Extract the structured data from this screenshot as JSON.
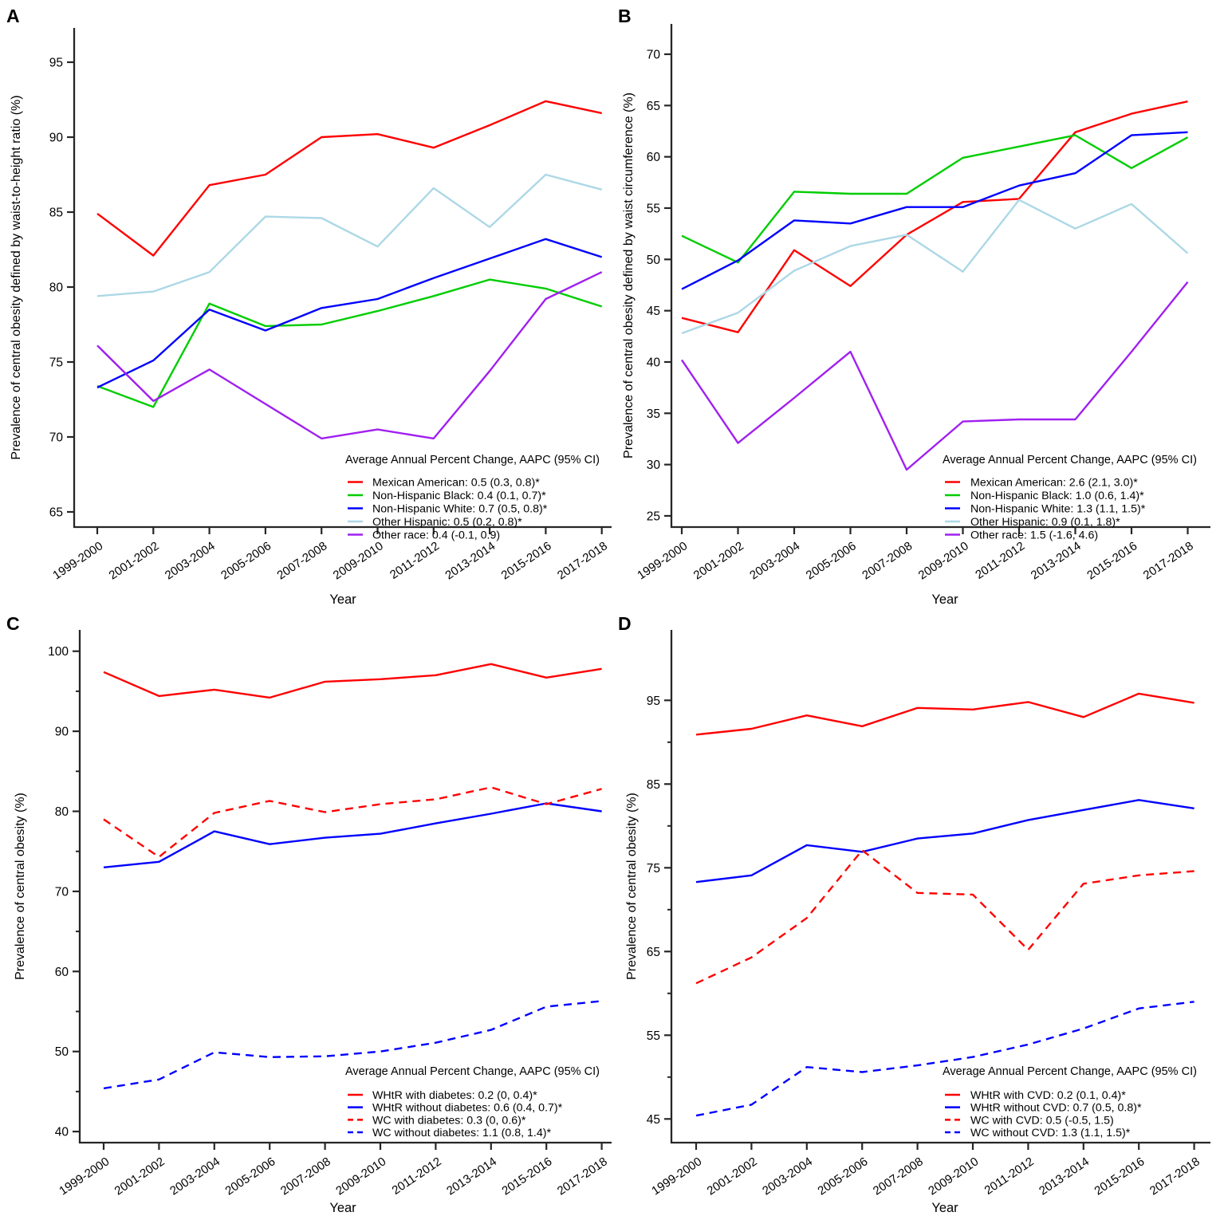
{
  "figure_title": "",
  "categories": [
    "1999-2000",
    "2001-2002",
    "2003-2004",
    "2005-2006",
    "2007-2008",
    "2009-2010",
    "2011-2012",
    "2013-2014",
    "2015-2016",
    "2017-2018"
  ],
  "xlabel": "Year",
  "legend_title": "Average Annual Percent Change, AAPC (95% CI)",
  "colors": {
    "red": "#FF0000",
    "green": "#00CD00",
    "blue": "#0000FF",
    "lightblue": "#ADD8E6",
    "purple": "#A020F0",
    "axis": "#262626"
  },
  "chart_data": [
    {
      "panel": "A",
      "type": "line",
      "ylabel": "Prevalence of central obesity defined by waist-to-height ratio (%)",
      "xlabel": "Year",
      "ylim": [
        63,
        97.5
      ],
      "yticks": [
        95,
        90,
        85,
        80,
        75,
        70,
        65
      ],
      "yticks_minor": [],
      "grid": false,
      "legend_position": "lower right",
      "legend_title": "Average Annual Percent Change, AAPC (95% CI)",
      "series": [
        {
          "name": "Mexican American",
          "legend": "Mexican American: 0.5 (0.3, 0.8)*",
          "color": "#FF0000",
          "dashed": false,
          "values": [
            84.9,
            82.1,
            86.8,
            87.5,
            90.0,
            90.2,
            89.3,
            90.8,
            92.4,
            91.6
          ]
        },
        {
          "name": "Non-Hispanic Black",
          "legend": "Non-Hispanic Black: 0.4 (0.1, 0.7)*",
          "color": "#00CD00",
          "dashed": false,
          "values": [
            73.4,
            72.0,
            78.9,
            77.4,
            77.5,
            78.4,
            79.4,
            80.5,
            79.9,
            78.7
          ]
        },
        {
          "name": "Non-Hispanic White",
          "legend": "Non-Hispanic White: 0.7 (0.5, 0.8)*",
          "color": "#0000FF",
          "dashed": false,
          "values": [
            73.3,
            75.1,
            78.5,
            77.1,
            78.6,
            79.2,
            80.6,
            81.9,
            83.2,
            82.0
          ]
        },
        {
          "name": "Other Hispanic",
          "legend": "Other Hispanic: 0.5 (0.2, 0.8)*",
          "color": "#ADD8E6",
          "dashed": false,
          "values": [
            79.4,
            79.7,
            81.0,
            84.7,
            84.6,
            82.7,
            86.6,
            84.0,
            87.5,
            86.5
          ]
        },
        {
          "name": "Other race",
          "legend": "Other race: 0.4 (-0.1, 0.9)",
          "color": "#A020F0",
          "dashed": false,
          "values": [
            76.1,
            72.4,
            74.5,
            72.2,
            69.9,
            70.5,
            69.9,
            74.4,
            79.2,
            81.0
          ]
        }
      ]
    },
    {
      "panel": "B",
      "type": "line",
      "ylabel": "Prevalence of central obesity defined by waist circumference (%)",
      "xlabel": "Year",
      "ylim": [
        23,
        71
      ],
      "yticks": [
        70,
        65,
        60,
        55,
        50,
        45,
        40,
        35,
        30,
        25
      ],
      "yticks_minor": [],
      "grid": false,
      "legend_position": "lower right",
      "legend_title": "Average Annual Percent Change, AAPC (95% CI)",
      "series": [
        {
          "name": "Mexican American",
          "legend": "Mexican American: 2.6 (2.1, 3.0)*",
          "color": "#FF0000",
          "dashed": false,
          "values": [
            44.3,
            42.9,
            50.9,
            47.4,
            52.4,
            55.6,
            55.9,
            62.4,
            64.2,
            65.4
          ]
        },
        {
          "name": "Non-Hispanic Black",
          "legend": "Non-Hispanic Black: 1.0 (0.6, 1.4)*",
          "color": "#00CD00",
          "dashed": false,
          "values": [
            52.3,
            49.7,
            56.6,
            56.4,
            56.4,
            59.9,
            61.0,
            62.1,
            58.9,
            61.9
          ]
        },
        {
          "name": "Non-Hispanic White",
          "legend": "Non-Hispanic White: 1.3 (1.1, 1.5)*",
          "color": "#0000FF",
          "dashed": false,
          "values": [
            47.1,
            49.9,
            53.8,
            53.5,
            55.1,
            55.1,
            57.2,
            58.4,
            62.1,
            62.4
          ]
        },
        {
          "name": "Other Hispanic",
          "legend": "Other Hispanic: 0.9 (0.1, 1.8)*",
          "color": "#ADD8E6",
          "dashed": false,
          "values": [
            42.8,
            44.8,
            48.9,
            51.3,
            52.4,
            48.8,
            55.8,
            53.0,
            55.4,
            50.6
          ]
        },
        {
          "name": "Other race",
          "legend": "Other race: 1.5 (-1.6, 4.6)",
          "color": "#A020F0",
          "dashed": false,
          "values": [
            40.2,
            32.1,
            36.5,
            41.0,
            29.5,
            34.2,
            34.4,
            34.4,
            41.0,
            47.8
          ]
        }
      ]
    },
    {
      "panel": "C",
      "type": "line",
      "ylabel": "Prevalence of central obesity (%)",
      "xlabel": "Year",
      "ylim": [
        38,
        102
      ],
      "yticks": [
        100,
        90,
        80,
        70,
        60,
        50,
        40
      ],
      "yticks_minor": [
        95,
        85,
        75,
        65,
        55,
        45
      ],
      "grid": false,
      "legend_position": "lower right",
      "legend_title": "Average Annual Percent Change, AAPC (95% CI)",
      "series": [
        {
          "name": "WHtR with diabetes",
          "legend": "WHtR with diabetes: 0.2 (0, 0.4)*",
          "color": "#FF0000",
          "dashed": false,
          "values": [
            97.4,
            94.4,
            95.2,
            94.2,
            96.2,
            96.5,
            97.0,
            98.4,
            96.7,
            97.8
          ]
        },
        {
          "name": "WHtR without diabetes",
          "legend": "WHtR without diabetes: 0.6 (0.4, 0.7)*",
          "color": "#0000FF",
          "dashed": false,
          "values": [
            73.0,
            73.7,
            77.5,
            75.9,
            76.7,
            77.2,
            78.5,
            79.7,
            81.0,
            80.0
          ]
        },
        {
          "name": "WC with diabetes",
          "legend": "WC with diabetes: 0.3 (0, 0.6)*",
          "color": "#FF0000",
          "dashed": true,
          "values": [
            79.0,
            74.3,
            79.8,
            81.3,
            79.9,
            80.9,
            81.5,
            83.0,
            80.9,
            82.8
          ]
        },
        {
          "name": "WC without diabetes",
          "legend": "WC without diabetes: 1.1 (0.8, 1.4)*",
          "color": "#0000FF",
          "dashed": true,
          "values": [
            45.4,
            46.5,
            49.9,
            49.3,
            49.4,
            50.0,
            51.1,
            52.7,
            55.6,
            56.3
          ]
        }
      ]
    },
    {
      "panel": "D",
      "type": "line",
      "ylabel": "Prevalence of central obesity (%)",
      "xlabel": "Year",
      "ylim": [
        42,
        97
      ],
      "yticks": [
        95,
        85,
        75,
        65,
        55,
        45
      ],
      "yticks_minor": [
        90,
        80,
        70,
        60,
        50
      ],
      "grid": false,
      "legend_position": "lower right",
      "legend_title": "Average Annual Percent Change, AAPC (95% CI)",
      "series": [
        {
          "name": "WHtR with CVD",
          "legend": "WHtR with CVD: 0.2 (0.1, 0.4)*",
          "color": "#FF0000",
          "dashed": false,
          "values": [
            90.9,
            91.6,
            93.2,
            91.9,
            94.1,
            93.9,
            94.8,
            93.0,
            95.8,
            94.7
          ]
        },
        {
          "name": "WHtR without CVD",
          "legend": "WHtR without CVD: 0.7 (0.5, 0.8)*",
          "color": "#0000FF",
          "dashed": false,
          "values": [
            73.3,
            74.1,
            77.7,
            76.9,
            78.5,
            79.1,
            80.7,
            81.9,
            83.1,
            82.1
          ]
        },
        {
          "name": "WC with CVD",
          "legend": "WC with CVD: 0.5 (-0.5, 1.5)",
          "color": "#FF0000",
          "dashed": true,
          "values": [
            61.2,
            64.3,
            69.0,
            77.1,
            72.0,
            71.8,
            65.2,
            73.1,
            74.1,
            74.6
          ]
        },
        {
          "name": "WC without CVD",
          "legend": "WC without CVD: 1.3 (1.1, 1.5)*",
          "color": "#0000FF",
          "dashed": true,
          "values": [
            45.4,
            46.7,
            51.2,
            50.6,
            51.4,
            52.4,
            53.9,
            55.8,
            58.2,
            59.0
          ]
        }
      ]
    }
  ],
  "panel_letters": {
    "a": "A",
    "b": "B",
    "c": "C",
    "d": "D"
  }
}
